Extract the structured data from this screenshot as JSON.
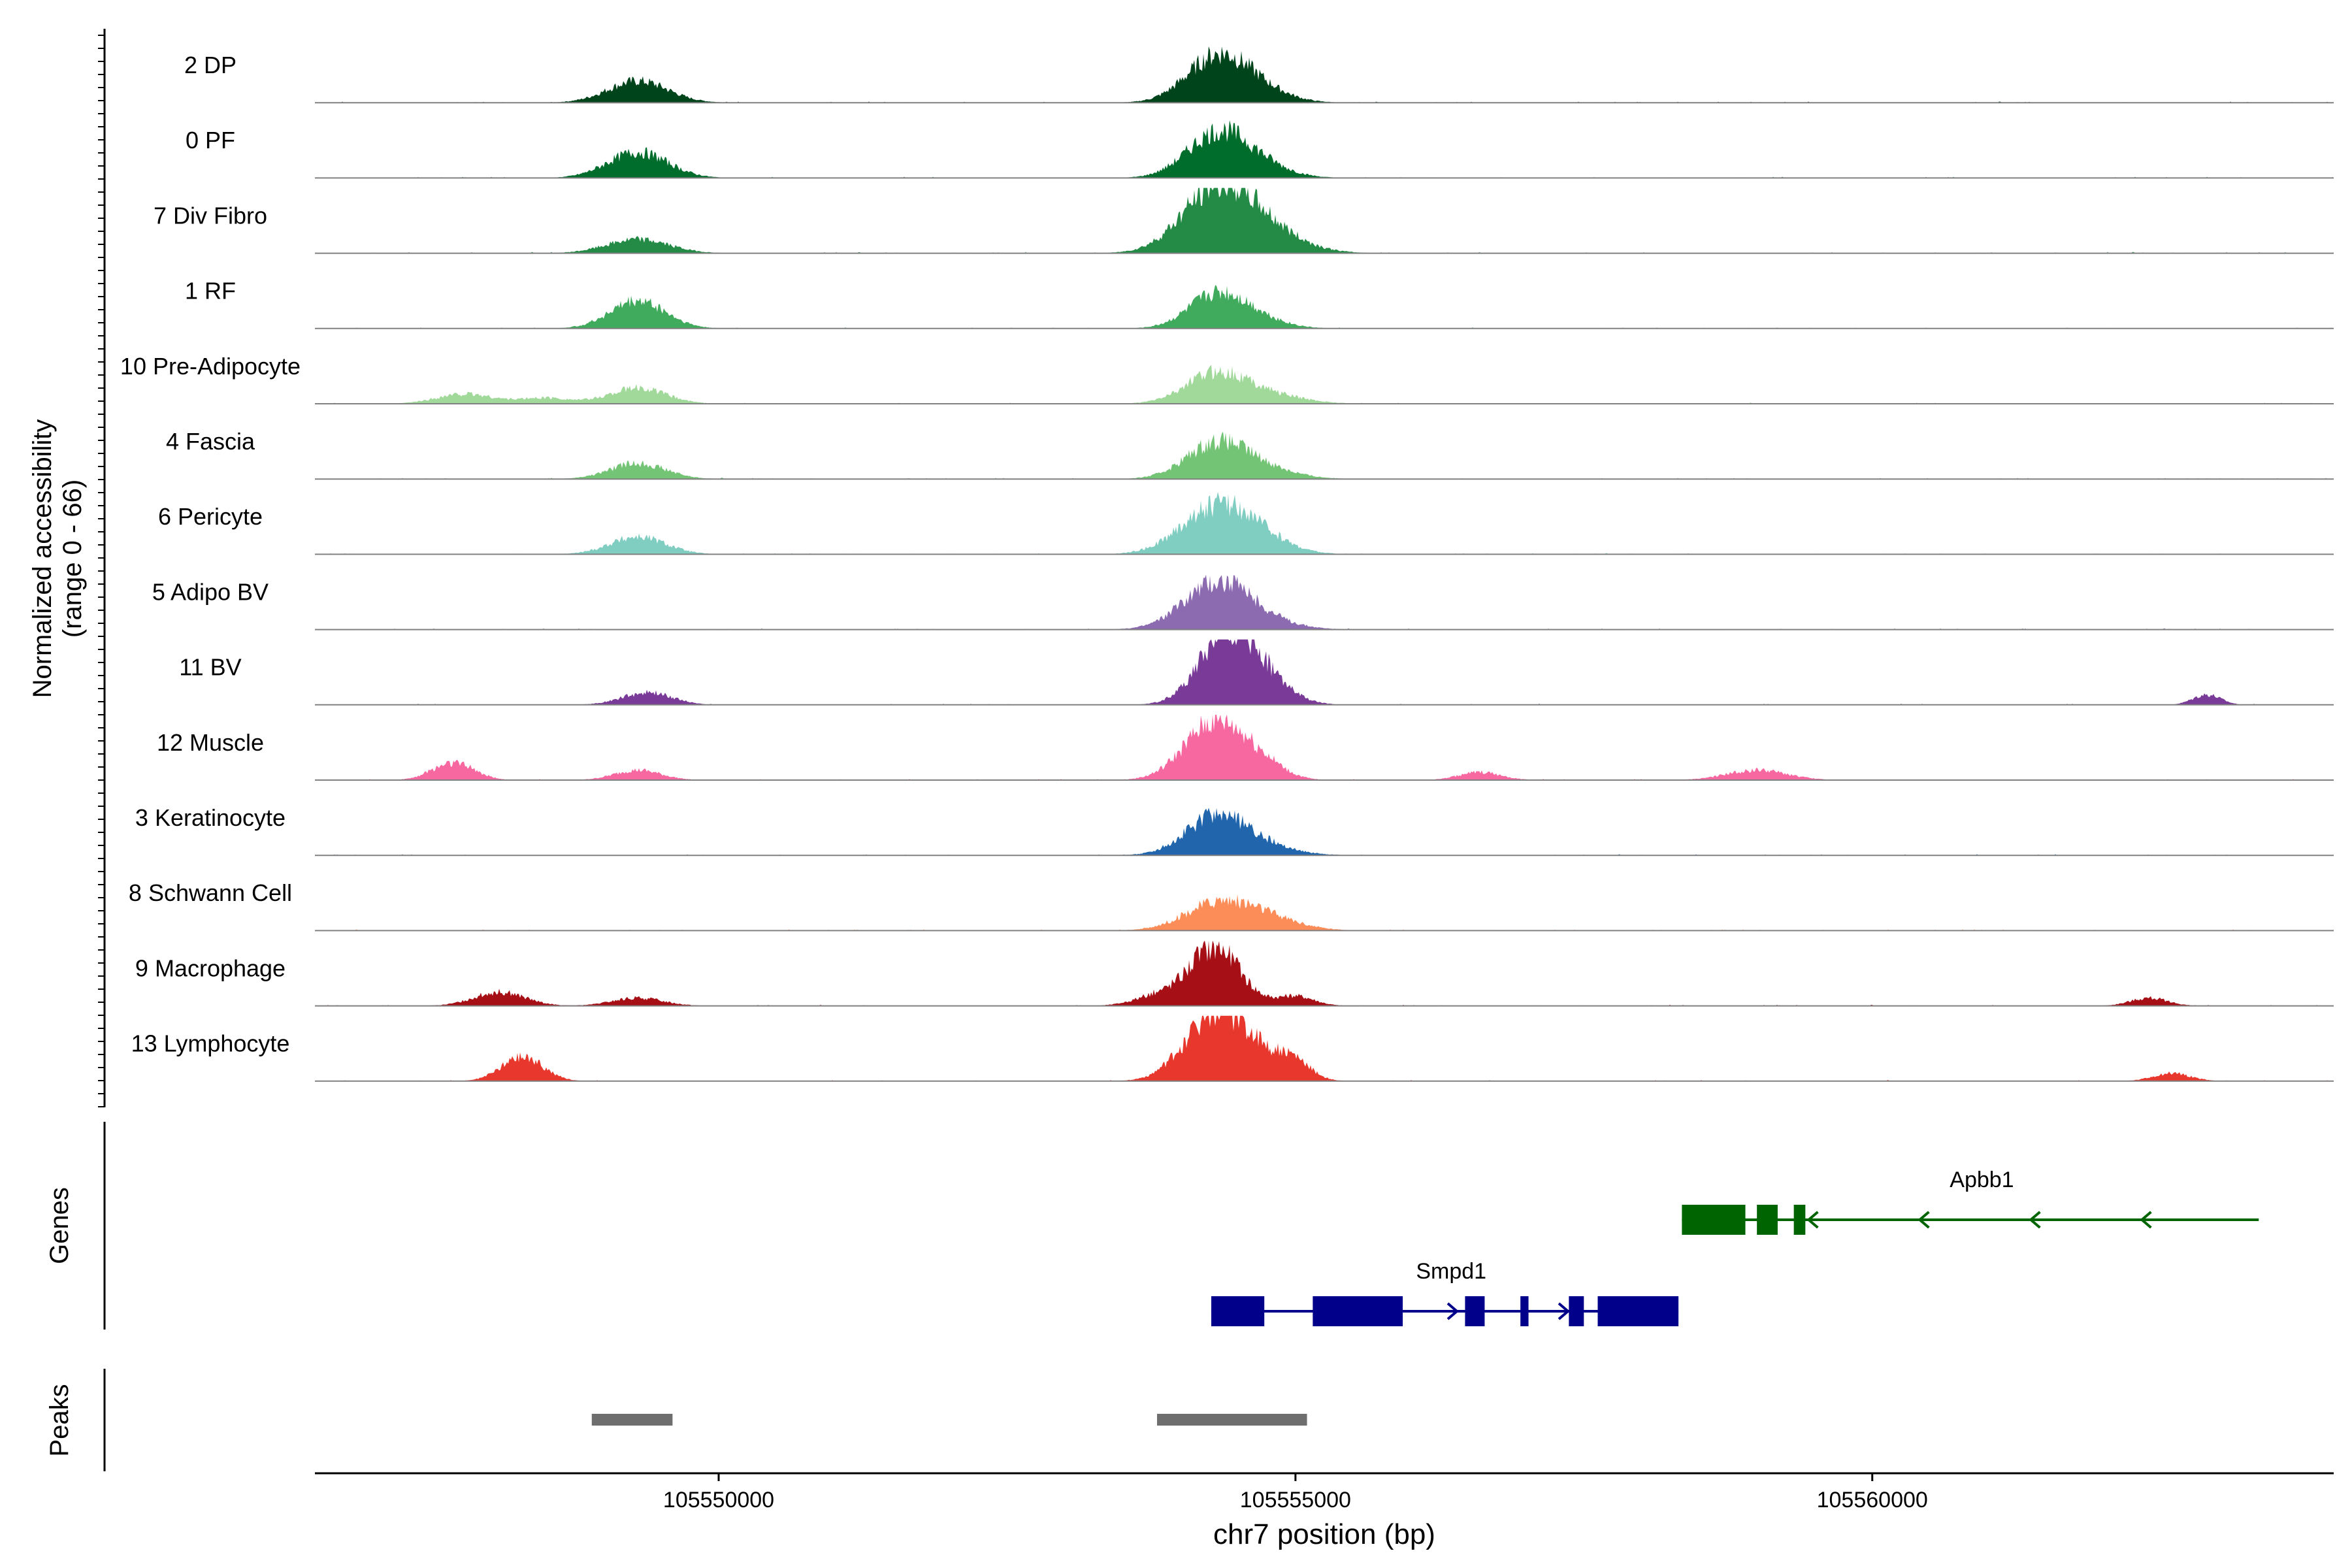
{
  "chart_data": {
    "type": "area",
    "title": "",
    "ylabel_line1": "Normalized accessibility",
    "ylabel_line2": "(range 0 - 66)",
    "xlabel": "chr7 position (bp)",
    "xlim": [
      105546500,
      105564000
    ],
    "ylim": [
      0,
      66
    ],
    "x_ticks": [
      105550000,
      105555000,
      105560000
    ],
    "x_tick_labels": [
      "105550000",
      "105555000",
      "105560000"
    ],
    "genes_label": "Genes",
    "peaks_label": "Peaks",
    "tracks": [
      {
        "name": "2 DP",
        "color": "#00441b",
        "peaks": [
          [
            105549300,
            22,
            260
          ],
          [
            105554300,
            40,
            260
          ],
          [
            105554600,
            16,
            280
          ]
        ]
      },
      {
        "name": "0 PF",
        "color": "#006d2c",
        "peaks": [
          [
            105549300,
            26,
            260
          ],
          [
            105554300,
            38,
            260
          ],
          [
            105554600,
            16,
            280
          ]
        ]
      },
      {
        "name": "7 Div Fibro",
        "color": "#238b45",
        "peaks": [
          [
            105549300,
            14,
            270
          ],
          [
            105554300,
            55,
            300
          ],
          [
            105554650,
            26,
            340
          ]
        ]
      },
      {
        "name": "1 RF",
        "color": "#41ab5d",
        "peaks": [
          [
            105549300,
            28,
            240
          ],
          [
            105554300,
            30,
            240
          ],
          [
            105554600,
            12,
            260
          ]
        ]
      },
      {
        "name": "10 Pre-Adipocyte",
        "color": "#a1d99b",
        "peaks": [
          [
            105547800,
            10,
            240
          ],
          [
            105548500,
            6,
            220
          ],
          [
            105549300,
            16,
            240
          ],
          [
            105554300,
            28,
            260
          ],
          [
            105554700,
            10,
            320
          ]
        ]
      },
      {
        "name": "4 Fascia",
        "color": "#74c476",
        "peaks": [
          [
            105549300,
            16,
            240
          ],
          [
            105554300,
            32,
            260
          ],
          [
            105554650,
            12,
            300
          ]
        ]
      },
      {
        "name": "6 Pericyte",
        "color": "#80cdc1",
        "peaks": [
          [
            105549300,
            18,
            240
          ],
          [
            105554300,
            44,
            300
          ],
          [
            105554650,
            14,
            280
          ]
        ]
      },
      {
        "name": "5 Adipo BV",
        "color": "#8c6bb1",
        "peaks": [
          [
            105554300,
            44,
            280
          ],
          [
            105554650,
            10,
            300
          ]
        ]
      },
      {
        "name": "11 BV",
        "color": "#7a3b98",
        "peaks": [
          [
            105549300,
            8,
            200
          ],
          [
            105549500,
            6,
            180
          ],
          [
            105554400,
            66,
            240
          ],
          [
            105554700,
            22,
            240
          ],
          [
            105562900,
            10,
            120
          ]
        ]
      },
      {
        "name": "12 Muscle",
        "color": "#f768a1",
        "peaks": [
          [
            105547700,
            18,
            180
          ],
          [
            105549300,
            10,
            200
          ],
          [
            105554300,
            58,
            260
          ],
          [
            105554700,
            14,
            200
          ],
          [
            105556600,
            8,
            180
          ],
          [
            105559000,
            10,
            260
          ]
        ]
      },
      {
        "name": "3 Keratinocyte",
        "color": "#2166ac",
        "peaks": [
          [
            105554300,
            36,
            260
          ],
          [
            105554650,
            10,
            300
          ]
        ]
      },
      {
        "name": "8 Schwann Cell",
        "color": "#fc8d59",
        "peaks": [
          [
            105554300,
            24,
            280
          ],
          [
            105554700,
            14,
            300
          ]
        ]
      },
      {
        "name": "9 Macrophage",
        "color": "#a50f15",
        "peaks": [
          [
            105548100,
            14,
            220
          ],
          [
            105549300,
            8,
            220
          ],
          [
            105554300,
            60,
            220
          ],
          [
            105553800,
            10,
            200
          ],
          [
            105555000,
            10,
            160
          ],
          [
            105562400,
            8,
            160
          ]
        ]
      },
      {
        "name": "13 Lymphocyte",
        "color": "#e8372c",
        "peaks": [
          [
            105548300,
            24,
            180
          ],
          [
            105554300,
            66,
            260
          ],
          [
            105554700,
            20,
            240
          ],
          [
            105555000,
            14,
            140
          ],
          [
            105562600,
            8,
            160
          ]
        ]
      }
    ],
    "genes": [
      {
        "name": "Apbb1",
        "strand": "-",
        "color": "#006400",
        "start": 105558350,
        "end": 105563350,
        "exons": [
          [
            105558350,
            105558900
          ],
          [
            105559000,
            105559180
          ],
          [
            105559320,
            105559420
          ]
        ]
      },
      {
        "name": "Smpd1",
        "strand": "+",
        "color": "#00008b",
        "start": 105554270,
        "end": 105558320,
        "exons": [
          [
            105554270,
            105554730
          ],
          [
            105555150,
            105555930
          ],
          [
            105556470,
            105556640
          ],
          [
            105556950,
            105557020
          ],
          [
            105557370,
            105557500
          ],
          [
            105557620,
            105558320
          ]
        ]
      }
    ],
    "peak_regions": [
      [
        105548900,
        105549600
      ],
      [
        105553800,
        105555100
      ]
    ]
  }
}
